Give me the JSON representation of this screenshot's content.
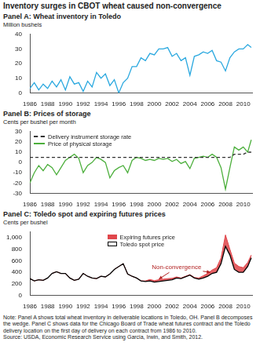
{
  "title": "Inventory surges in CBOT wheat caused non-convergence",
  "note": "Note: Panel A shows total wheat inventory in deliverable locations in Toledo, OH. Panel B decomposes the wedge. Panel C shows data for the Chicago Board of Trade wheat futures contract and the Toledo delivery location on the first day of delivery on each contract from 1986 to 2010.",
  "source": "Source: USDA, Economic Research Service using Garcia, Irwin, and Smith, 2012.",
  "chart_data": [
    {
      "type": "line",
      "title": "Panel A: Wheat inventory in Toledo",
      "y_label": "Million bushels",
      "x": [
        1986,
        1986.5,
        1987,
        1987.5,
        1988,
        1988.5,
        1989,
        1989.5,
        1990,
        1990.5,
        1991,
        1991.5,
        1992,
        1992.5,
        1993,
        1993.5,
        1994,
        1994.5,
        1995,
        1995.5,
        1996,
        1996.5,
        1997,
        1997.5,
        1998,
        1998.5,
        1999,
        1999.5,
        2000,
        2000.5,
        2001,
        2001.5,
        2002,
        2002.5,
        2003,
        2003.5,
        2004,
        2004.5,
        2005,
        2005.5,
        2006,
        2006.5,
        2007,
        2007.5,
        2008,
        2008.5,
        2009,
        2009.5,
        2010,
        2010.5,
        2010.9
      ],
      "series": [
        {
          "color": "#2aa8df",
          "values": [
            3,
            7,
            2,
            6,
            3,
            8,
            4,
            9,
            2,
            11,
            6,
            7,
            1,
            8,
            4,
            14,
            10,
            13,
            5,
            9,
            0,
            7,
            10,
            18,
            18,
            24,
            22,
            27,
            26,
            30,
            30,
            31,
            25,
            27,
            22,
            24,
            12,
            25,
            26,
            28,
            27,
            29,
            22,
            21,
            15,
            24,
            28,
            30,
            30,
            33,
            31
          ]
        }
      ],
      "xlim": [
        1986,
        2011
      ],
      "xticks": [
        1986,
        1988,
        1990,
        1992,
        1994,
        1996,
        1998,
        2000,
        2002,
        2004,
        2006,
        2008,
        2010
      ],
      "ylim": [
        0,
        40
      ],
      "yticks": [
        0,
        10,
        20,
        30,
        40
      ],
      "grid": false
    },
    {
      "type": "line",
      "title": "Panel B: Prices of storage",
      "y_label": "Cents per bushel per month",
      "x": [
        1986,
        1986.5,
        1987,
        1987.5,
        1988,
        1988.5,
        1989,
        1989.5,
        1990,
        1990.5,
        1991,
        1991.5,
        1992,
        1992.5,
        1993,
        1993.5,
        1994,
        1994.5,
        1995,
        1995.5,
        1996,
        1996.5,
        1997,
        1997.5,
        1998,
        1998.5,
        1999,
        1999.5,
        2000,
        2000.5,
        2001,
        2001.5,
        2002,
        2002.5,
        2003,
        2003.5,
        2004,
        2004.5,
        2005,
        2005.5,
        2006,
        2006.5,
        2007,
        2007.5,
        2008,
        2008.5,
        2009,
        2009.5,
        2010,
        2010.5,
        2010.9
      ],
      "series": [
        {
          "name": "Delivery instrument storage rate",
          "color": "#333333",
          "line_style": "dashed",
          "values": [
            5,
            5,
            5,
            5,
            5,
            5,
            5,
            5,
            5,
            5,
            5,
            5,
            5,
            5,
            5,
            5,
            5,
            5,
            5,
            5,
            5,
            5,
            5,
            5,
            5,
            5,
            5,
            5,
            5,
            5,
            5,
            5,
            5,
            5,
            5,
            5,
            5,
            5,
            5,
            5,
            5,
            5,
            5,
            5,
            5,
            5,
            8,
            8,
            8,
            10,
            10
          ]
        },
        {
          "name": "Price of physical storage",
          "color": "#4caf3c",
          "values": [
            -20,
            -10,
            -3,
            -8,
            -2,
            -5,
            -12,
            -5,
            2,
            5,
            8,
            4,
            -10,
            -3,
            0,
            5,
            3,
            0,
            -15,
            -8,
            -5,
            -3,
            -10,
            2,
            5,
            4,
            2,
            3,
            2,
            4,
            3,
            4,
            1,
            3,
            -1,
            1,
            -6,
            4,
            5,
            6,
            5,
            8,
            5,
            -5,
            -26,
            -5,
            15,
            12,
            15,
            10,
            22
          ]
        }
      ],
      "xlim": [
        1986,
        2011
      ],
      "xticks": [
        1986,
        1988,
        1990,
        1992,
        1994,
        1996,
        1998,
        2000,
        2002,
        2004,
        2006,
        2008,
        2010
      ],
      "ylim": [
        -30,
        30
      ],
      "yticks": [
        -30,
        -20,
        -10,
        0,
        10,
        20,
        30
      ],
      "grid": false,
      "legend": "top-left"
    },
    {
      "type": "line",
      "title": "Panel C: Toledo spot and expiring futures prices",
      "y_label": "Cents per bushel",
      "x": [
        1986,
        1986.5,
        1987,
        1987.5,
        1988,
        1988.5,
        1989,
        1989.5,
        1990,
        1990.5,
        1991,
        1991.5,
        1992,
        1992.5,
        1993,
        1993.5,
        1994,
        1994.5,
        1995,
        1995.5,
        1996,
        1996.5,
        1997,
        1997.5,
        1998,
        1998.5,
        1999,
        1999.5,
        2000,
        2000.5,
        2001,
        2001.5,
        2002,
        2002.5,
        2003,
        2003.5,
        2004,
        2004.5,
        2005,
        2005.5,
        2006,
        2006.5,
        2007,
        2007.5,
        2008,
        2008.5,
        2009,
        2009.5,
        2010,
        2010.5,
        2010.9
      ],
      "series": [
        {
          "name": "Expiring futures price",
          "color": "#e0474c",
          "type": "area",
          "values": [
            290,
            250,
            270,
            260,
            300,
            380,
            410,
            380,
            380,
            300,
            260,
            280,
            380,
            330,
            300,
            290,
            330,
            320,
            370,
            450,
            500,
            550,
            370,
            330,
            300,
            250,
            250,
            275,
            255,
            270,
            280,
            290,
            295,
            320,
            300,
            330,
            360,
            310,
            300,
            340,
            380,
            440,
            480,
            650,
            1050,
            800,
            560,
            500,
            480,
            570,
            700
          ]
        },
        {
          "name": "Toledo spot price",
          "color": "#000000",
          "values": [
            290,
            250,
            270,
            260,
            300,
            380,
            410,
            380,
            380,
            300,
            260,
            280,
            380,
            330,
            300,
            290,
            330,
            320,
            370,
            450,
            500,
            550,
            370,
            330,
            300,
            250,
            240,
            250,
            230,
            240,
            250,
            260,
            270,
            300,
            290,
            320,
            350,
            300,
            280,
            300,
            330,
            380,
            400,
            550,
            850,
            700,
            450,
            400,
            400,
            500,
            650
          ]
        }
      ],
      "annotations": [
        {
          "text": "Non-convergence",
          "x": 2002.5,
          "y": 480,
          "arrow_to": [
            [
              2000.5,
              280
            ],
            [
              2006.3,
              400
            ]
          ]
        }
      ],
      "xlim": [
        1986,
        2011
      ],
      "xticks": [
        1986,
        1988,
        1990,
        1992,
        1994,
        1996,
        1998,
        2000,
        2002,
        2004,
        2006,
        2008,
        2010
      ],
      "ylim": [
        0,
        1100
      ],
      "yticks": [
        0,
        200,
        400,
        600,
        800,
        {
          "value": 1000,
          "label": "1,000"
        }
      ],
      "grid": false,
      "legend": "top"
    }
  ]
}
